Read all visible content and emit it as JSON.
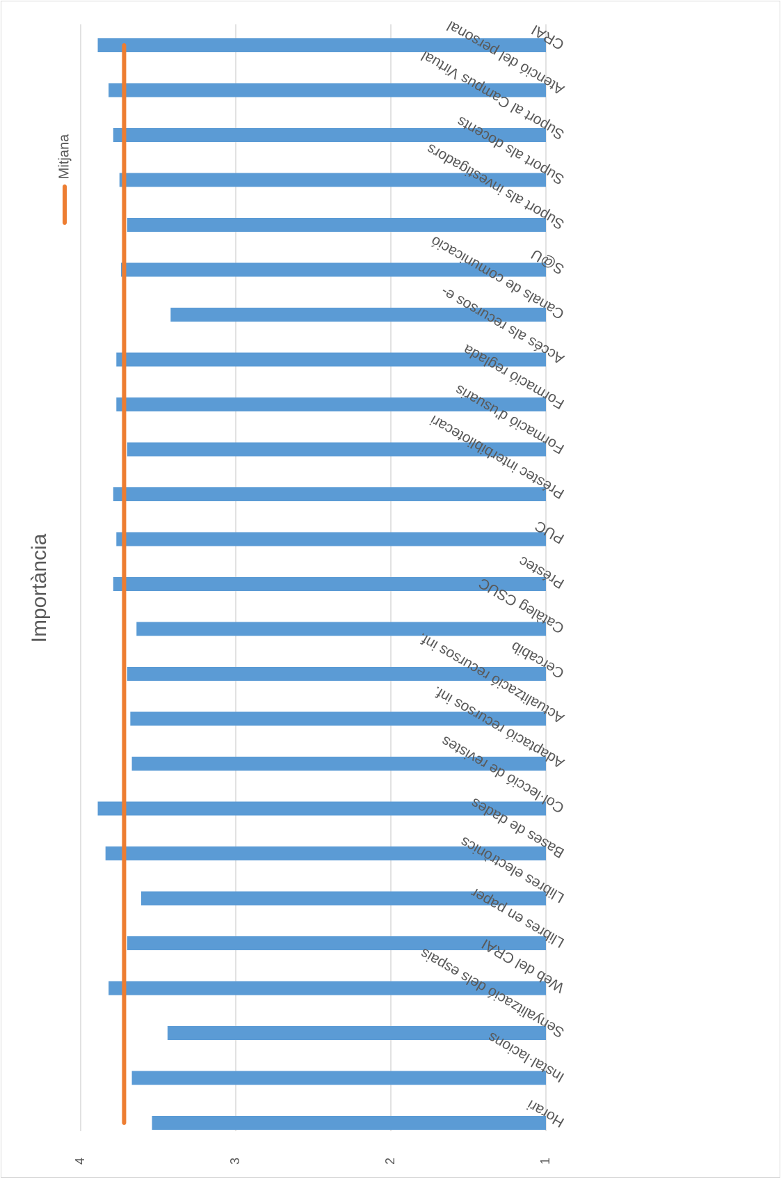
{
  "chart_data": {
    "type": "bar",
    "orientation": "rotated-horizontal",
    "title": "Importància",
    "xlabel": "",
    "ylabel": "",
    "ylim": [
      1,
      4
    ],
    "ticks": [
      "1",
      "2",
      "3",
      "4"
    ],
    "grid": true,
    "legend_position": "top",
    "categories": [
      "CRAI",
      "Atenció del personal",
      "Suport al Campus Virtual",
      "Suport als docents",
      "Suport als investigadors",
      "S@U",
      "Canals de comunicació",
      "Accés als recursos e-",
      "Formació reglada",
      "Formació d'usuaris",
      "Préstec interbibliotecari",
      "PUC",
      "Préstec",
      "Catàleg CSUC",
      "Cercabib",
      "Actualització recursos inf.",
      "Adaptació recursos inf.",
      "Col·lecció de revistes",
      "Bases de dades",
      "Llibres electrònics",
      "Llibres en paper",
      "Web del CRAI",
      "Senyalització dels espais",
      "Instal·lacions",
      "Horari"
    ],
    "series": [
      {
        "name": "",
        "kind": "bar",
        "color": "#5B9BD5",
        "values": [
          3.89,
          3.82,
          3.79,
          3.75,
          3.7,
          3.74,
          3.42,
          3.77,
          3.77,
          3.7,
          3.79,
          3.77,
          3.79,
          3.64,
          3.7,
          3.68,
          3.67,
          3.89,
          3.84,
          3.61,
          3.7,
          3.82,
          3.44,
          3.67,
          3.54
        ]
      },
      {
        "name": "Mitjana",
        "kind": "line",
        "color": "#ED7D31",
        "values": [
          3.72,
          3.72,
          3.72,
          3.72,
          3.72,
          3.72,
          3.72,
          3.72,
          3.72,
          3.72,
          3.72,
          3.72,
          3.72,
          3.72,
          3.72,
          3.72,
          3.72,
          3.72,
          3.72,
          3.72,
          3.72,
          3.72,
          3.72,
          3.72,
          3.72
        ]
      }
    ]
  }
}
